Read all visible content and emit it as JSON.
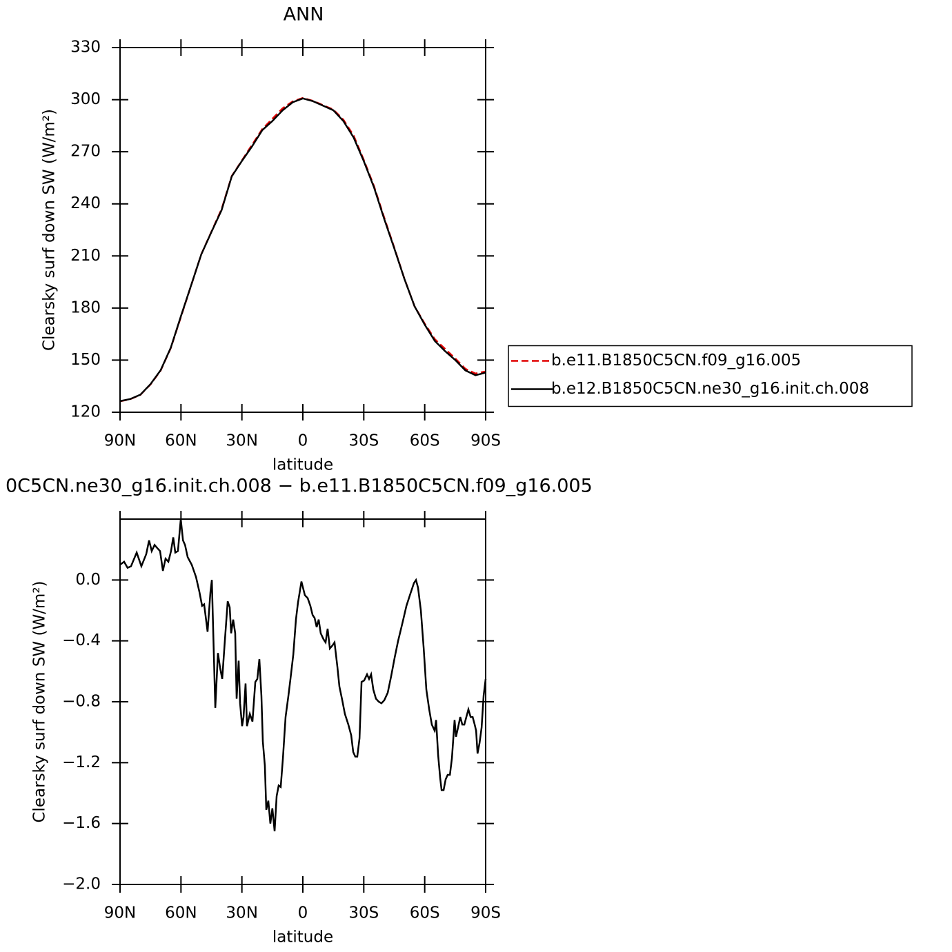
{
  "chart_data": [
    {
      "type": "line",
      "title": "ANN",
      "xlabel": "latitude",
      "ylabel": "Clearsky surf down SW (W/m²)",
      "x": [
        90,
        85,
        80,
        75,
        70,
        65,
        60,
        55,
        50,
        45,
        40,
        35,
        30,
        25,
        20,
        15,
        10,
        5,
        0,
        -5,
        -10,
        -15,
        -20,
        -25,
        -30,
        -35,
        -40,
        -45,
        -50,
        -55,
        -60,
        -65,
        -70,
        -75,
        -80,
        -85,
        -90
      ],
      "series": [
        {
          "name": "b.e11.B1850C5CN.f09_g16.005",
          "color": "#e00000",
          "style": "dashed",
          "values": [
            126.3,
            127.5,
            130,
            136,
            144,
            157,
            175,
            193,
            211,
            224,
            237,
            256,
            265,
            274,
            283,
            289,
            295,
            299,
            301,
            299.3,
            296.8,
            294.3,
            288.4,
            279.3,
            265.3,
            250.3,
            232.3,
            214.8,
            196.9,
            181,
            171,
            162,
            156.5,
            151,
            145,
            142.3,
            143.5
          ]
        },
        {
          "name": "b.e12.B1850C5CN.ne30_g16.init.ch.008",
          "color": "#000000",
          "style": "solid",
          "values": [
            126.4,
            127.6,
            130.1,
            136.2,
            144.2,
            157.2,
            175.4,
            193.1,
            210.9,
            223.8,
            236.4,
            255.8,
            264.7,
            273.1,
            282.4,
            287.7,
            293.8,
            298.5,
            300.7,
            299.1,
            296.5,
            293.9,
            287.6,
            278.2,
            264.6,
            249.6,
            231.5,
            214.4,
            196.8,
            181,
            170.4,
            161,
            155.2,
            150.1,
            144.1,
            141.3,
            142.8
          ]
        }
      ],
      "xlim": [
        90,
        -90
      ],
      "xticks": [
        {
          "value": 90,
          "label": "90N"
        },
        {
          "value": 60,
          "label": "60N"
        },
        {
          "value": 30,
          "label": "30N"
        },
        0,
        {
          "value": -30,
          "label": "30S"
        },
        {
          "value": -60,
          "label": "60S"
        },
        {
          "value": -90,
          "label": "90S"
        }
      ],
      "ylim": [
        120,
        330
      ],
      "yticks": [
        120,
        150,
        180,
        210,
        240,
        270,
        300,
        330
      ],
      "legend_position": "right"
    },
    {
      "type": "line",
      "title": "0C5CN.ne30_g16.init.ch.008 − b.e11.B1850C5CN.f09_g16.005",
      "xlabel": "latitude",
      "ylabel": "Clearsky surf down SW (W/m²)",
      "x": [
        90,
        88,
        86.3,
        84.6,
        81.8,
        79.5,
        77.1,
        75.7,
        74.4,
        73,
        71.7,
        70.3,
        68.9,
        67.6,
        66.2,
        64.9,
        63.8,
        62.8,
        61.5,
        60.1,
        59,
        58,
        56.7,
        54.7,
        52.6,
        50.9,
        49.6,
        48.6,
        46.9,
        45.5,
        44.8,
        44.1,
        43.1,
        41.8,
        40.7,
        39.7,
        38.4,
        37,
        36,
        35.3,
        34.3,
        33.3,
        32.6,
        31.6,
        30.9,
        29.9,
        29.2,
        28.2,
        27.5,
        26.1,
        24.8,
        23.4,
        22.4,
        21.4,
        20.4,
        19.7,
        18.7,
        18,
        17,
        16,
        15,
        13.9,
        12.9,
        11.9,
        10.9,
        9.8,
        8.5,
        7.1,
        6.1,
        4.7,
        3.4,
        2.4,
        0.7,
        -1,
        -2.4,
        -3.7,
        -4.8,
        -5.8,
        -6.8,
        -7.8,
        -8.8,
        -10.2,
        -11.2,
        -12.2,
        -13.3,
        -14.6,
        -15.6,
        -17,
        -18,
        -19.4,
        -20.7,
        -22.4,
        -23.8,
        -24.8,
        -25.8,
        -26.8,
        -27.9,
        -28.9,
        -30.2,
        -31.6,
        -32.6,
        -33.6,
        -34.7,
        -36,
        -37.4,
        -38.7,
        -40.1,
        -41.8,
        -43.5,
        -45.2,
        -46.9,
        -48.9,
        -51,
        -52.7,
        -54.7,
        -55.7,
        -56.7,
        -58.1,
        -59.5,
        -60.8,
        -62.2,
        -63.5,
        -64.9,
        -65.6,
        -66.6,
        -67.6,
        -68.3,
        -69.3,
        -70.3,
        -71.3,
        -72.4,
        -73.4,
        -74.7,
        -75.4,
        -76.4,
        -77.5,
        -78.5,
        -79.5,
        -80.5,
        -81.5,
        -82.6,
        -83.6,
        -84.6,
        -85.3,
        -86,
        -87,
        -88,
        -89,
        -90
      ],
      "series": [
        {
          "color": "#000000",
          "style": "solid",
          "values": [
            0.1,
            0.12,
            0.08,
            0.09,
            0.18,
            0.09,
            0.17,
            0.26,
            0.19,
            0.23,
            0.21,
            0.19,
            0.06,
            0.14,
            0.12,
            0.19,
            0.28,
            0.18,
            0.19,
            0.4,
            0.26,
            0.23,
            0.15,
            0.1,
            0.02,
            -0.08,
            -0.17,
            -0.16,
            -0.34,
            -0.08,
            0.0,
            -0.35,
            -0.84,
            -0.48,
            -0.58,
            -0.65,
            -0.4,
            -0.14,
            -0.18,
            -0.35,
            -0.26,
            -0.35,
            -0.78,
            -0.53,
            -0.81,
            -0.96,
            -0.9,
            -0.68,
            -0.96,
            -0.88,
            -0.93,
            -0.67,
            -0.65,
            -0.52,
            -0.76,
            -1.06,
            -1.22,
            -1.51,
            -1.45,
            -1.6,
            -1.5,
            -1.65,
            -1.42,
            -1.35,
            -1.36,
            -1.17,
            -0.9,
            -0.76,
            -0.65,
            -0.49,
            -0.26,
            -0.15,
            -0.01,
            -0.1,
            -0.12,
            -0.17,
            -0.23,
            -0.25,
            -0.31,
            -0.26,
            -0.35,
            -0.39,
            -0.41,
            -0.32,
            -0.45,
            -0.43,
            -0.41,
            -0.57,
            -0.7,
            -0.79,
            -0.88,
            -0.95,
            -1.02,
            -1.13,
            -1.16,
            -1.16,
            -1.04,
            -0.67,
            -0.66,
            -0.62,
            -0.65,
            -0.62,
            -0.72,
            -0.78,
            -0.8,
            -0.81,
            -0.79,
            -0.74,
            -0.63,
            -0.51,
            -0.4,
            -0.29,
            -0.17,
            -0.1,
            -0.02,
            0.0,
            -0.05,
            -0.2,
            -0.45,
            -0.72,
            -0.85,
            -0.95,
            -0.99,
            -0.92,
            -1.15,
            -1.3,
            -1.38,
            -1.38,
            -1.31,
            -1.28,
            -1.28,
            -1.17,
            -0.92,
            -1.03,
            -0.97,
            -0.9,
            -0.95,
            -0.95,
            -0.9,
            -0.85,
            -0.9,
            -0.9,
            -0.95,
            -0.99,
            -1.14,
            -1.07,
            -0.97,
            -0.76,
            -0.65
          ]
        }
      ],
      "xlim": [
        90,
        -90
      ],
      "xticks": [
        {
          "value": 90,
          "label": "90N"
        },
        {
          "value": 60,
          "label": "60N"
        },
        {
          "value": 30,
          "label": "30N"
        },
        0,
        {
          "value": -30,
          "label": "30S"
        },
        {
          "value": -60,
          "label": "60S"
        },
        {
          "value": -90,
          "label": "90S"
        }
      ],
      "ylim": [
        -2.0,
        0.4
      ],
      "yticks": [
        {
          "value": -2.0,
          "label": "−2.0"
        },
        {
          "value": -1.6,
          "label": "−1.6"
        },
        {
          "value": -1.2,
          "label": "−1.2"
        },
        {
          "value": -0.8,
          "label": "−0.8"
        },
        {
          "value": -0.4,
          "label": "−0.4"
        },
        {
          "value": 0,
          "label": "0.0"
        }
      ]
    }
  ]
}
